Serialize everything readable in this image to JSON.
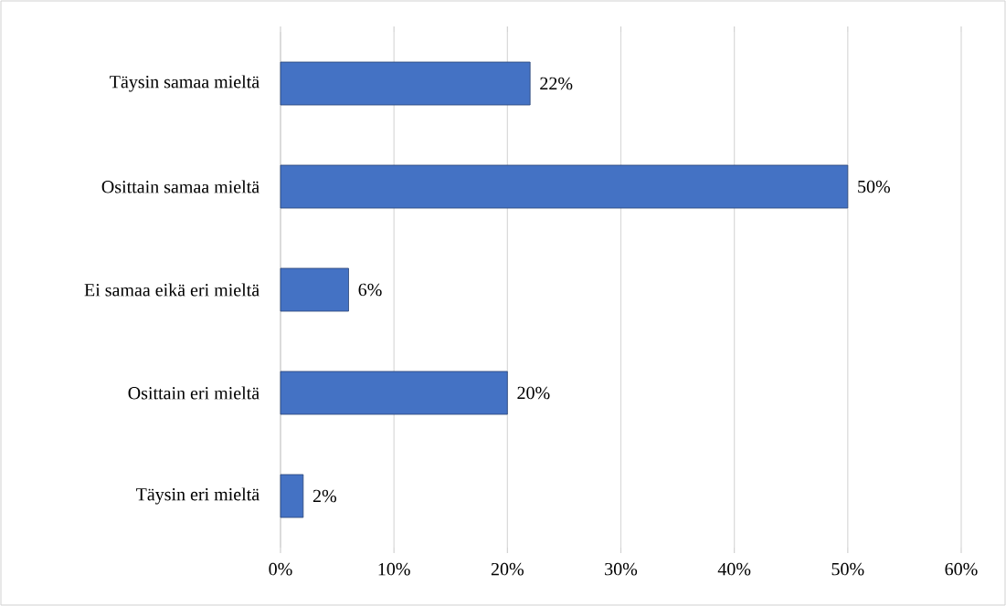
{
  "chart_data": {
    "type": "bar",
    "orientation": "horizontal",
    "categories": [
      "Täysin samaa mieltä",
      "Osittain samaa mieltä",
      "Ei samaa eikä eri mieltä",
      "Osittain eri mieltä",
      "Täysin eri mieltä"
    ],
    "values": [
      22,
      50,
      6,
      20,
      2
    ],
    "value_labels": [
      "22%",
      "50%",
      "6%",
      "20%",
      "2%"
    ],
    "color": "#4472c4",
    "xlim": [
      0,
      60
    ],
    "xticks": [
      {
        "value": 0,
        "label": "0%"
      },
      {
        "value": 10,
        "label": "10%"
      },
      {
        "value": 20,
        "label": "20%"
      },
      {
        "value": 30,
        "label": "30%"
      },
      {
        "value": 40,
        "label": "40%"
      },
      {
        "value": 50,
        "label": "50%"
      },
      {
        "value": 60,
        "label": "60%"
      }
    ],
    "grid": "x"
  }
}
